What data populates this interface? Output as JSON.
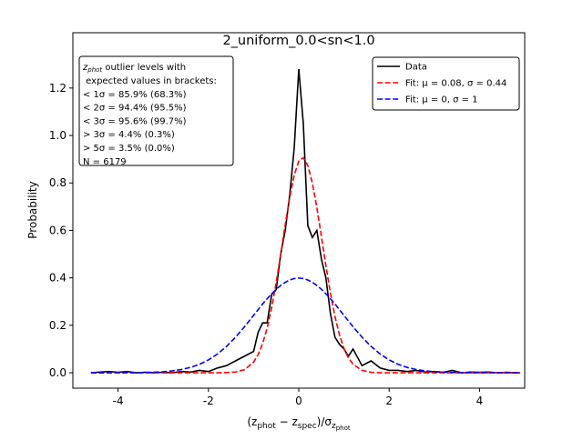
{
  "chart_data": {
    "type": "line",
    "title": "2_uniform_0.0<sn<1.0",
    "xlabel": [
      {
        "text": "(z"
      },
      {
        "sub": "phot"
      },
      {
        "text": " − z"
      },
      {
        "sub": "spec"
      },
      {
        "text": ")/σ"
      },
      {
        "sub": "z"
      },
      {
        "subsub": "phot"
      }
    ],
    "ylabel": "Probability",
    "x": [
      -4.6,
      -4.4,
      -4.2,
      -4.0,
      -3.8,
      -3.6,
      -3.4,
      -3.2,
      -3.0,
      -2.8,
      -2.6,
      -2.4,
      -2.2,
      -2.0,
      -1.8,
      -1.6,
      -1.4,
      -1.2,
      -1.0,
      -0.9,
      -0.8,
      -0.7,
      -0.6,
      -0.5,
      -0.4,
      -0.3,
      -0.2,
      -0.1,
      0.0,
      0.1,
      0.2,
      0.3,
      0.4,
      0.5,
      0.6,
      0.7,
      0.8,
      0.9,
      1.0,
      1.1,
      1.2,
      1.4,
      1.6,
      1.8,
      2.0,
      2.2,
      2.4,
      2.6,
      2.8,
      3.0,
      3.2,
      3.4,
      3.6,
      3.8,
      4.0,
      4.2,
      4.4,
      4.6,
      4.8,
      4.9
    ],
    "series": [
      {
        "name": "Data",
        "color": "#000000",
        "linestyle": "solid",
        "values": [
          0,
          0.003,
          0.005,
          0.002,
          0.005,
          0,
          0.002,
          0,
          0.002,
          0,
          0.005,
          0.003,
          0.01,
          0.005,
          0.02,
          0.03,
          0.05,
          0.07,
          0.09,
          0.17,
          0.21,
          0.21,
          0.33,
          0.35,
          0.5,
          0.6,
          0.75,
          0.95,
          1.28,
          1.05,
          0.62,
          0.57,
          0.6,
          0.48,
          0.4,
          0.25,
          0.15,
          0.12,
          0.1,
          0.07,
          0.1,
          0.03,
          0.05,
          0.02,
          0.01,
          0.01,
          0.005,
          0.01,
          0.003,
          0.005,
          0.002,
          0.01,
          0,
          0.003,
          0.002,
          0.003,
          0,
          0.002,
          0,
          0
        ]
      },
      {
        "name": "Fit: μ = 0.08, σ = 0.44",
        "color": "#ff0000",
        "linestyle": "dashed",
        "values": [
          0,
          0,
          0,
          0,
          0,
          0,
          0,
          0,
          0,
          0,
          0,
          0,
          0,
          0,
          0,
          0.001,
          0.003,
          0.013,
          0.045,
          0.076,
          0.123,
          0.188,
          0.275,
          0.38,
          0.5,
          0.624,
          0.74,
          0.834,
          0.892,
          0.906,
          0.873,
          0.8,
          0.696,
          0.575,
          0.451,
          0.336,
          0.238,
          0.16,
          0.102,
          0.062,
          0.036,
          0.01,
          0.002,
          0,
          0,
          0,
          0,
          0,
          0,
          0,
          0,
          0,
          0,
          0,
          0,
          0,
          0,
          0,
          0,
          0
        ]
      },
      {
        "name": "Fit: μ = 0, σ = 1",
        "color": "#0000ff",
        "linestyle": "dashed",
        "values": [
          0,
          0,
          0.0001,
          0.0001,
          0.0003,
          0.0006,
          0.0012,
          0.0024,
          0.0044,
          0.0079,
          0.0136,
          0.0224,
          0.0355,
          0.054,
          0.079,
          0.111,
          0.15,
          0.194,
          0.242,
          0.266,
          0.29,
          0.312,
          0.333,
          0.352,
          0.368,
          0.381,
          0.391,
          0.397,
          0.399,
          0.397,
          0.391,
          0.381,
          0.368,
          0.352,
          0.333,
          0.312,
          0.29,
          0.266,
          0.242,
          0.218,
          0.194,
          0.15,
          0.111,
          0.079,
          0.054,
          0.0355,
          0.0224,
          0.0136,
          0.0079,
          0.0044,
          0.0024,
          0.0012,
          0.0006,
          0.0003,
          0.0001,
          0.0001,
          0,
          0,
          0,
          0
        ]
      }
    ],
    "xlim": [
      -5,
      5
    ],
    "ylim": [
      -0.065,
      1.433
    ],
    "xticks": [
      -4,
      -2,
      0,
      2,
      4
    ],
    "yticks": [
      {
        "value": 0,
        "label": "0.0"
      },
      0.2,
      0.4,
      0.6,
      0.8,
      {
        "value": 1,
        "label": "1.0"
      },
      1.2
    ],
    "legend": "upper right",
    "annotation": {
      "first_line": {
        "symbol": "z",
        "sub": "phot",
        "text": " outlier levels with"
      },
      "lines": [
        " expected values in brackets:",
        "< 1σ = 85.9% (68.3%)",
        "< 2σ = 94.4% (95.5%)",
        "< 3σ = 95.6% (99.7%)",
        "> 3σ = 4.4% (0.3%)",
        "> 5σ = 3.5% (0.0%)",
        "N = 6179"
      ]
    }
  }
}
